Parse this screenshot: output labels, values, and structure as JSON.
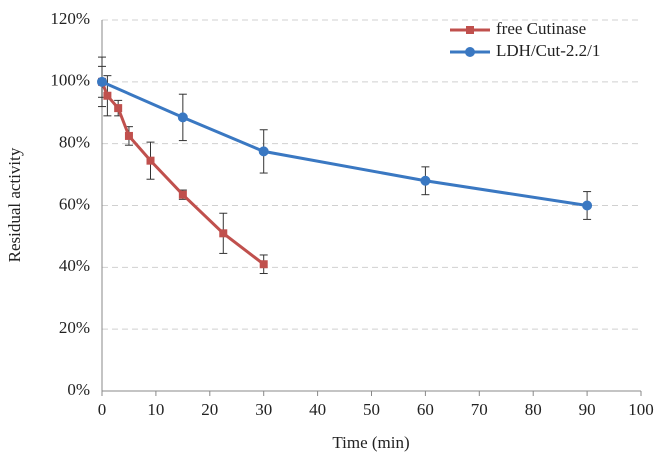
{
  "chart_data": {
    "type": "line",
    "x_label": "Time (min)",
    "y_label": "Residual activity",
    "xlim": [
      0,
      100
    ],
    "xticks": [
      0,
      10,
      20,
      30,
      40,
      50,
      60,
      70,
      80,
      90,
      100
    ],
    "ylim": [
      0,
      120
    ],
    "yticks": [
      {
        "value": 0,
        "label": "0%"
      },
      {
        "value": 20,
        "label": "20%"
      },
      {
        "value": 40,
        "label": "40%"
      },
      {
        "value": 60,
        "label": "60%"
      },
      {
        "value": 80,
        "label": "80%"
      },
      {
        "value": 100,
        "label": "100%"
      },
      {
        "value": 120,
        "label": "120%"
      }
    ],
    "grid": true,
    "legend": "top-right",
    "series": [
      {
        "name": "free Cutinase",
        "color": "#c0504d",
        "marker": "square",
        "x": [
          0,
          1,
          3,
          5,
          9,
          15,
          22.5,
          30
        ],
        "values": [
          100,
          95.5,
          91.5,
          82.5,
          74.5,
          63.5,
          51,
          41
        ],
        "errors": [
          5,
          6.5,
          2.5,
          3,
          6,
          1.5,
          6.5,
          3
        ]
      },
      {
        "name": "LDH/Cut-2.2/1",
        "color": "#3a78c2",
        "marker": "circle",
        "x": [
          0,
          15,
          30,
          60,
          90
        ],
        "values": [
          100,
          88.5,
          77.5,
          68,
          60
        ],
        "errors": [
          8,
          7.5,
          7,
          4.5,
          4.5
        ]
      }
    ]
  }
}
